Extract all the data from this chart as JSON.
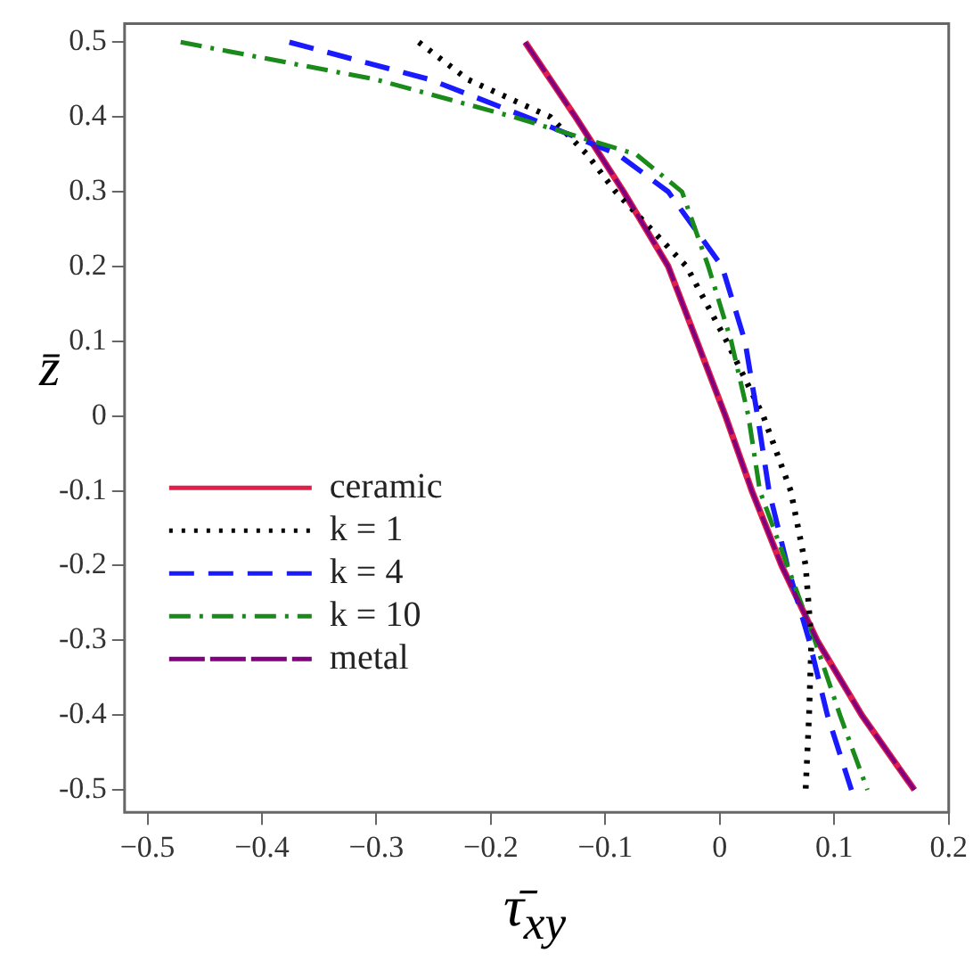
{
  "chart_data": {
    "type": "line",
    "xlabel": "τ̄$_{xy}$",
    "ylabel": "z̄",
    "xlim": [
      -0.52,
      0.2
    ],
    "ylim": [
      -0.53,
      0.525
    ],
    "xticks": [
      {
        "value": -0.5,
        "label": "−0.5"
      },
      {
        "value": -0.4,
        "label": "−0.4"
      },
      {
        "value": -0.3,
        "label": "−0.3"
      },
      {
        "value": -0.2,
        "label": "−0.2"
      },
      {
        "value": -0.1,
        "label": "−0.1"
      },
      0,
      0.1,
      0.2
    ],
    "yticks": [
      -0.5,
      -0.4,
      -0.3,
      -0.2,
      -0.1,
      0,
      0.1,
      0.2,
      0.3,
      0.4,
      0.5
    ],
    "grid": false,
    "legend": "bottom left",
    "marker": "none",
    "series": [
      {
        "name": "ceramic",
        "color": "#e0204a",
        "line_style": "solid",
        "x": [
          -0.17,
          -0.148,
          -0.126,
          -0.084,
          -0.045,
          -0.02,
          0.005,
          0.028,
          0.054,
          0.085,
          0.124,
          0.17
        ],
        "values": [
          0.5,
          0.45,
          0.4,
          0.3,
          0.2,
          0.1,
          0,
          -0.1,
          -0.2,
          -0.3,
          -0.4,
          -0.5
        ]
      },
      {
        "name": "k = 1",
        "color": "#000000",
        "line_style": "dotted",
        "x": [
          -0.263,
          -0.22,
          -0.148,
          -0.116,
          -0.091,
          -0.029,
          0.006,
          0.038,
          0.062,
          0.075,
          0.08,
          0.078,
          0.075
        ],
        "values": [
          0.5,
          0.45,
          0.4,
          0.35,
          0.3,
          0.2,
          0.1,
          0,
          -0.1,
          -0.2,
          -0.3,
          -0.4,
          -0.5
        ]
      },
      {
        "name": "k = 4",
        "color": "#1a1aff",
        "line_style": "dashed",
        "x": [
          -0.376,
          -0.253,
          -0.169,
          -0.089,
          -0.045,
          0.002,
          0.022,
          0.033,
          0.043,
          0.059,
          0.078,
          0.094,
          0.115
        ],
        "values": [
          0.5,
          0.45,
          0.4,
          0.35,
          0.3,
          0.2,
          0.1,
          0,
          -0.1,
          -0.2,
          -0.3,
          -0.4,
          -0.5
        ]
      },
      {
        "name": "k = 10",
        "color": "#1a8a1a",
        "line_style": "dashdot",
        "x": [
          -0.471,
          -0.3,
          -0.18,
          -0.073,
          -0.033,
          -0.01,
          0.01,
          0.025,
          0.035,
          0.059,
          0.083,
          0.105,
          0.129
        ],
        "values": [
          0.5,
          0.45,
          0.4,
          0.35,
          0.3,
          0.2,
          0.1,
          0,
          -0.1,
          -0.2,
          -0.3,
          -0.4,
          -0.5
        ]
      },
      {
        "name": "metal",
        "color": "#800080",
        "line_style": "longdash",
        "x": [
          -0.17,
          -0.148,
          -0.126,
          -0.084,
          -0.045,
          -0.02,
          0.005,
          0.028,
          0.054,
          0.085,
          0.124,
          0.17
        ],
        "values": [
          0.5,
          0.45,
          0.4,
          0.3,
          0.2,
          0.1,
          0,
          -0.1,
          -0.2,
          -0.3,
          -0.4,
          -0.5
        ]
      }
    ]
  }
}
